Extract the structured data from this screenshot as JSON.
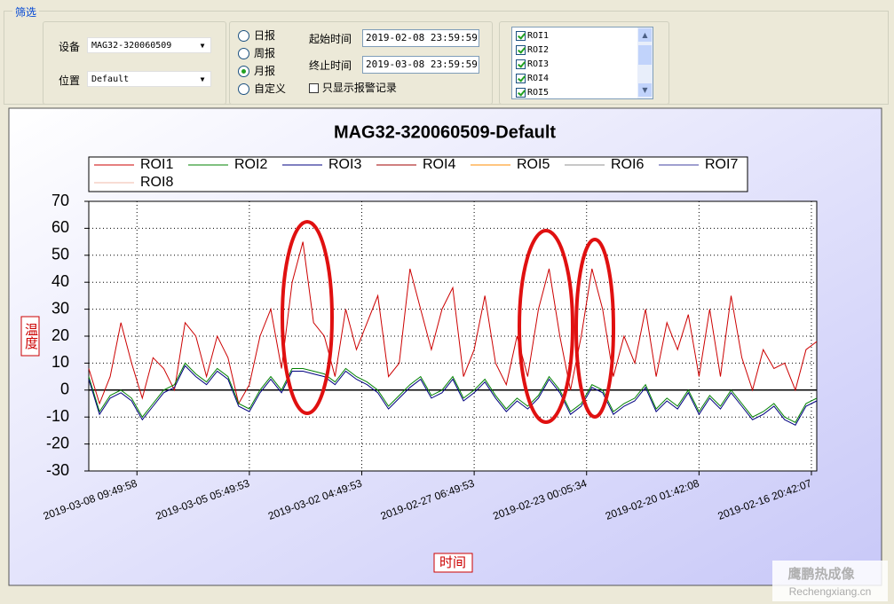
{
  "window": {
    "group_title": "筛选",
    "device_label": "设备",
    "device_value": "MAG32-320060509",
    "location_label": "位置",
    "location_value": "Default",
    "report_options": [
      "日报",
      "周报",
      "月报",
      "自定义"
    ],
    "selected_report": 2,
    "start_label": "起始时间",
    "start_value": "2019-02-08 23:59:59",
    "end_label": "终止时间",
    "end_value": "2019-03-08 23:59:59",
    "alarm_only_label": "只显示报警记录",
    "roi_list": [
      "ROI1",
      "ROI2",
      "ROI3",
      "ROI4",
      "ROI5"
    ],
    "watermark_cn": "鹰鹏热成像",
    "watermark_en": "Rechengxiang.cn"
  },
  "chart_data": {
    "type": "line",
    "title": "MAG32-320060509-Default",
    "xlabel": "时间",
    "ylabel": "温度",
    "xlim": [
      0,
      68
    ],
    "xticks": [
      {
        "value": 4.5,
        "label": "2019-03-08 09:49:58"
      },
      {
        "value": 15,
        "label": "2019-03-05 05:49:53"
      },
      {
        "value": 25.5,
        "label": "2019-03-02 04:49:53"
      },
      {
        "value": 36,
        "label": "2019-02-27 06:49:53"
      },
      {
        "value": 46.5,
        "label": "2019-02-23 00:05:34"
      },
      {
        "value": 57,
        "label": "2019-02-20 01:42:08"
      },
      {
        "value": 67.5,
        "label": "2019-02-16 20:42:07"
      }
    ],
    "ylim": [
      -30,
      70
    ],
    "yticks": [
      -30,
      -20,
      -10,
      0,
      10,
      20,
      30,
      40,
      50,
      60,
      70
    ],
    "grid": true,
    "series": [
      {
        "name": "ROI1",
        "color": "#cc0000",
        "values": [
          8,
          -5,
          5,
          25,
          10,
          -3,
          12,
          8,
          0,
          25,
          20,
          5,
          20,
          12,
          -5,
          2,
          20,
          30,
          8,
          40,
          55,
          25,
          20,
          5,
          30,
          15,
          25,
          35,
          5,
          10,
          45,
          30,
          15,
          30,
          38,
          5,
          15,
          35,
          10,
          2,
          20,
          5,
          30,
          45,
          20,
          0,
          20,
          45,
          30,
          5,
          20,
          10,
          30,
          5,
          25,
          15,
          28,
          5,
          30,
          5,
          35,
          12,
          0,
          15,
          8,
          10,
          0,
          15,
          18
        ]
      },
      {
        "name": "ROI2",
        "color": "#008000",
        "values": [
          5,
          -8,
          -2,
          0,
          -3,
          -10,
          -5,
          0,
          2,
          10,
          6,
          3,
          8,
          5,
          -5,
          -7,
          0,
          5,
          0,
          8,
          8,
          7,
          6,
          3,
          8,
          5,
          3,
          0,
          -6,
          -2,
          2,
          5,
          -2,
          0,
          5,
          -3,
          0,
          4,
          -2,
          -7,
          -3,
          -6,
          -2,
          5,
          0,
          -8,
          -5,
          2,
          0,
          -8,
          -5,
          -3,
          2,
          -7,
          -3,
          -6,
          0,
          -8,
          -2,
          -6,
          0,
          -5,
          -10,
          -8,
          -5,
          -10,
          -12,
          -5,
          -3
        ]
      },
      {
        "name": "ROI3",
        "color": "#000080",
        "values": [
          4,
          -9,
          -3,
          -1,
          -4,
          -11,
          -6,
          -1,
          1,
          9,
          5,
          2,
          7,
          4,
          -6,
          -8,
          -1,
          4,
          -1,
          7,
          7,
          6,
          5,
          2,
          7,
          4,
          2,
          -1,
          -7,
          -3,
          1,
          4,
          -3,
          -1,
          4,
          -4,
          -1,
          3,
          -3,
          -8,
          -4,
          -7,
          -3,
          4,
          -1,
          -9,
          -6,
          1,
          -1,
          -9,
          -6,
          -4,
          1,
          -8,
          -4,
          -7,
          -1,
          -9,
          -3,
          -7,
          -1,
          -6,
          -11,
          -9,
          -6,
          -11,
          -13,
          -6,
          -4
        ]
      },
      {
        "name": "ROI4",
        "color": "#a00000",
        "values": [
          null,
          null,
          null,
          null,
          null,
          null,
          null,
          null,
          null,
          null,
          null,
          null,
          null,
          null,
          null,
          null,
          null,
          null,
          null,
          null,
          null,
          null,
          null,
          null,
          null,
          null,
          null,
          null,
          null,
          null,
          null,
          null,
          null,
          null,
          null,
          null,
          null,
          null,
          null,
          null,
          null,
          null,
          null,
          null,
          null,
          null,
          null,
          null,
          null,
          null,
          null,
          null,
          null,
          null,
          null,
          null,
          null,
          null,
          null,
          null,
          null,
          null,
          null,
          null,
          null,
          null,
          null,
          null,
          null
        ]
      },
      {
        "name": "ROI5",
        "color": "#ff8c00",
        "values": [
          null,
          null,
          null,
          null,
          null,
          null,
          null,
          null,
          null,
          null,
          null,
          null,
          null,
          null,
          null,
          null,
          null,
          null,
          null,
          null,
          null,
          null,
          null,
          null,
          null,
          null,
          null,
          null,
          null,
          null,
          null,
          null,
          null,
          null,
          null,
          null,
          null,
          null,
          null,
          null,
          null,
          null,
          null,
          null,
          null,
          null,
          null,
          null,
          null,
          null,
          null,
          null,
          null,
          null,
          null,
          null,
          null,
          null,
          null,
          null,
          null,
          null,
          null,
          null,
          null,
          null,
          null,
          null,
          null
        ]
      },
      {
        "name": "ROI6",
        "color": "#909090",
        "values": [
          null,
          null,
          null,
          null,
          null,
          null,
          null,
          null,
          null,
          null,
          null,
          null,
          null,
          null,
          null,
          null,
          null,
          null,
          null,
          null,
          null,
          null,
          null,
          null,
          null,
          null,
          null,
          null,
          null,
          null,
          null,
          null,
          null,
          null,
          null,
          null,
          null,
          null,
          null,
          null,
          null,
          null,
          null,
          null,
          null,
          null,
          null,
          null,
          null,
          null,
          null,
          null,
          null,
          null,
          null,
          null,
          null,
          null,
          null,
          null,
          null,
          null,
          null,
          null,
          null,
          null,
          null,
          null,
          null
        ]
      },
      {
        "name": "ROI7",
        "color": "#4040a0",
        "values": [
          null,
          null,
          null,
          null,
          null,
          null,
          null,
          null,
          null,
          null,
          null,
          null,
          null,
          null,
          null,
          null,
          null,
          null,
          null,
          null,
          null,
          null,
          null,
          null,
          null,
          null,
          null,
          null,
          null,
          null,
          null,
          null,
          null,
          null,
          null,
          null,
          null,
          null,
          null,
          null,
          null,
          null,
          null,
          null,
          null,
          null,
          null,
          null,
          null,
          null,
          null,
          null,
          null,
          null,
          null,
          null,
          null,
          null,
          null,
          null,
          null,
          null,
          null,
          null,
          null,
          null,
          null,
          null,
          null
        ]
      },
      {
        "name": "ROI8",
        "color": "#f0b8a8",
        "values": [
          null,
          null,
          null,
          null,
          null,
          null,
          null,
          null,
          null,
          null,
          null,
          null,
          null,
          null,
          null,
          null,
          null,
          null,
          null,
          null,
          null,
          null,
          null,
          null,
          null,
          null,
          null,
          null,
          null,
          null,
          null,
          null,
          null,
          null,
          null,
          null,
          null,
          null,
          null,
          null,
          null,
          null,
          null,
          null,
          null,
          null,
          null,
          null,
          null,
          null,
          null,
          null,
          null,
          null,
          null,
          null,
          null,
          null,
          null,
          null,
          null,
          null,
          null,
          null,
          null,
          null,
          null,
          null,
          null
        ]
      }
    ]
  }
}
